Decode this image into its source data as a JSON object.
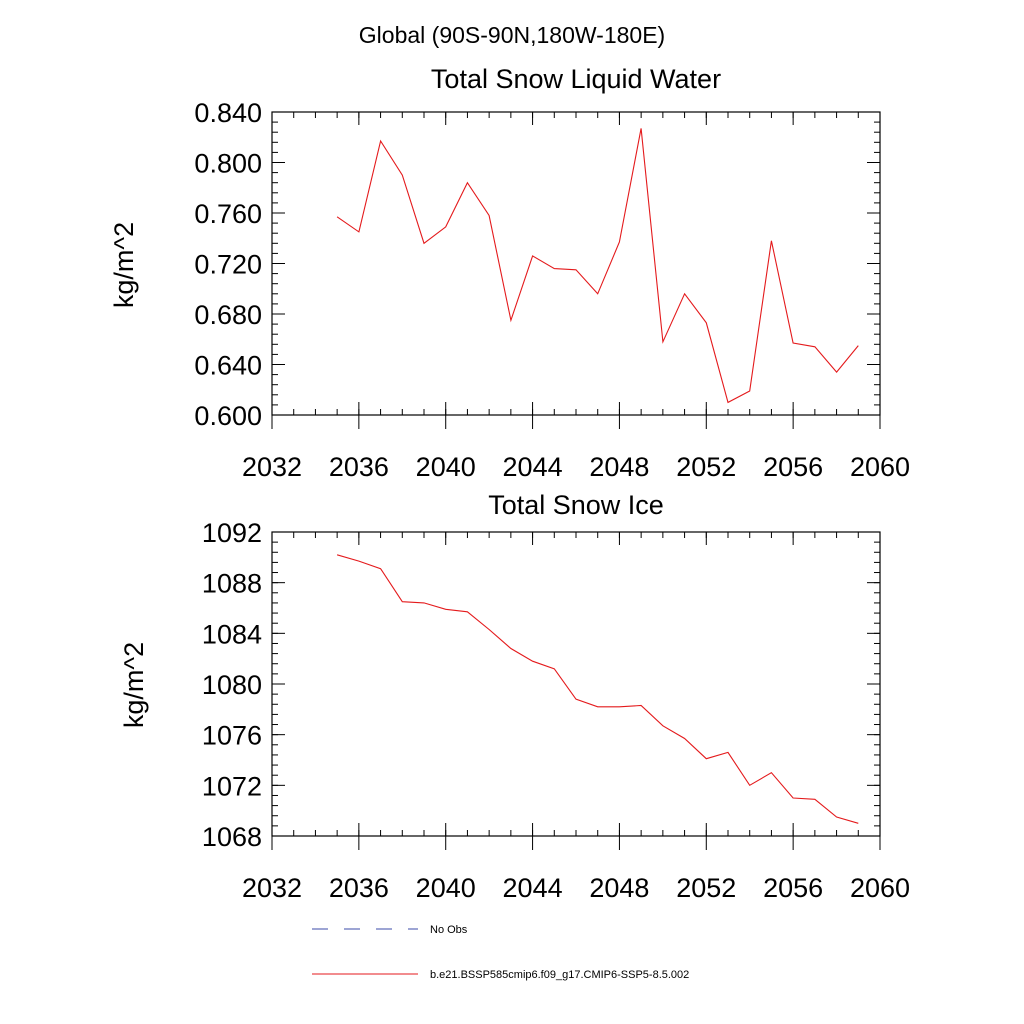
{
  "page_title": "Global (90S-90N,180W-180E)",
  "colors": {
    "series": "#e41a1c",
    "obs": "#3b4ba8",
    "axis": "#000000"
  },
  "chart_data": [
    {
      "type": "line",
      "title": "Total Snow Liquid Water",
      "xlabel": "",
      "ylabel": "kg/m^2",
      "xlim": [
        2032,
        2060
      ],
      "ylim": [
        0.6,
        0.84
      ],
      "xticks": [
        2032,
        2036,
        2040,
        2044,
        2048,
        2052,
        2056,
        2060
      ],
      "xtick_labels": [
        "2032",
        "2036",
        "2040",
        "2044",
        "2048",
        "2052",
        "2056",
        "2060"
      ],
      "yticks": [
        0.6,
        0.64,
        0.68,
        0.72,
        0.76,
        0.8,
        0.84
      ],
      "ytick_labels": [
        "0.600",
        "0.640",
        "0.680",
        "0.720",
        "0.760",
        "0.800",
        "0.840"
      ],
      "minor_y_step": 0.008,
      "minor_x_step": 1,
      "grid": false,
      "series": [
        {
          "name": "b.e21.BSSP585cmip6.f09_g17.CMIP6-SSP5-8.5.002",
          "color": "#e41a1c",
          "x": [
            2035,
            2036,
            2037,
            2038,
            2039,
            2040,
            2041,
            2042,
            2043,
            2044,
            2045,
            2046,
            2047,
            2048,
            2049,
            2050,
            2051,
            2052,
            2053,
            2054,
            2055,
            2056,
            2057,
            2058,
            2059
          ],
          "y": [
            0.757,
            0.745,
            0.817,
            0.79,
            0.736,
            0.749,
            0.784,
            0.758,
            0.675,
            0.726,
            0.716,
            0.715,
            0.696,
            0.737,
            0.827,
            0.658,
            0.696,
            0.673,
            0.61,
            0.619,
            0.738,
            0.657,
            0.654,
            0.634,
            0.655
          ]
        }
      ]
    },
    {
      "type": "line",
      "title": "Total Snow Ice",
      "xlabel": "",
      "ylabel": "kg/m^2",
      "xlim": [
        2032,
        2060
      ],
      "ylim": [
        1068,
        1092
      ],
      "xticks": [
        2032,
        2036,
        2040,
        2044,
        2048,
        2052,
        2056,
        2060
      ],
      "xtick_labels": [
        "2032",
        "2036",
        "2040",
        "2044",
        "2048",
        "2052",
        "2056",
        "2060"
      ],
      "yticks": [
        1068,
        1072,
        1076,
        1080,
        1084,
        1088,
        1092
      ],
      "ytick_labels": [
        "1068",
        "1072",
        "1076",
        "1080",
        "1084",
        "1088",
        "1092"
      ],
      "minor_y_step": 0.8,
      "minor_x_step": 1,
      "grid": false,
      "series": [
        {
          "name": "b.e21.BSSP585cmip6.f09_g17.CMIP6-SSP5-8.5.002",
          "color": "#e41a1c",
          "x": [
            2035,
            2036,
            2037,
            2038,
            2039,
            2040,
            2041,
            2042,
            2043,
            2044,
            2045,
            2046,
            2047,
            2048,
            2049,
            2050,
            2051,
            2052,
            2053,
            2054,
            2055,
            2056,
            2057,
            2058,
            2059
          ],
          "y": [
            1090.2,
            1089.7,
            1089.1,
            1086.5,
            1086.4,
            1085.9,
            1085.7,
            1084.3,
            1082.8,
            1081.8,
            1081.2,
            1078.8,
            1078.2,
            1078.2,
            1078.3,
            1076.7,
            1075.7,
            1074.1,
            1074.6,
            1072.0,
            1073.0,
            1071.0,
            1070.9,
            1069.5,
            1069.0
          ]
        }
      ]
    }
  ],
  "legend": {
    "position": "bottom",
    "items": [
      {
        "label": "No Obs",
        "style": "dashed",
        "color": "#3b4ba8"
      },
      {
        "label": "b.e21.BSSP585cmip6.f09_g17.CMIP6-SSP5-8.5.002",
        "style": "solid",
        "color": "#e41a1c"
      }
    ]
  }
}
